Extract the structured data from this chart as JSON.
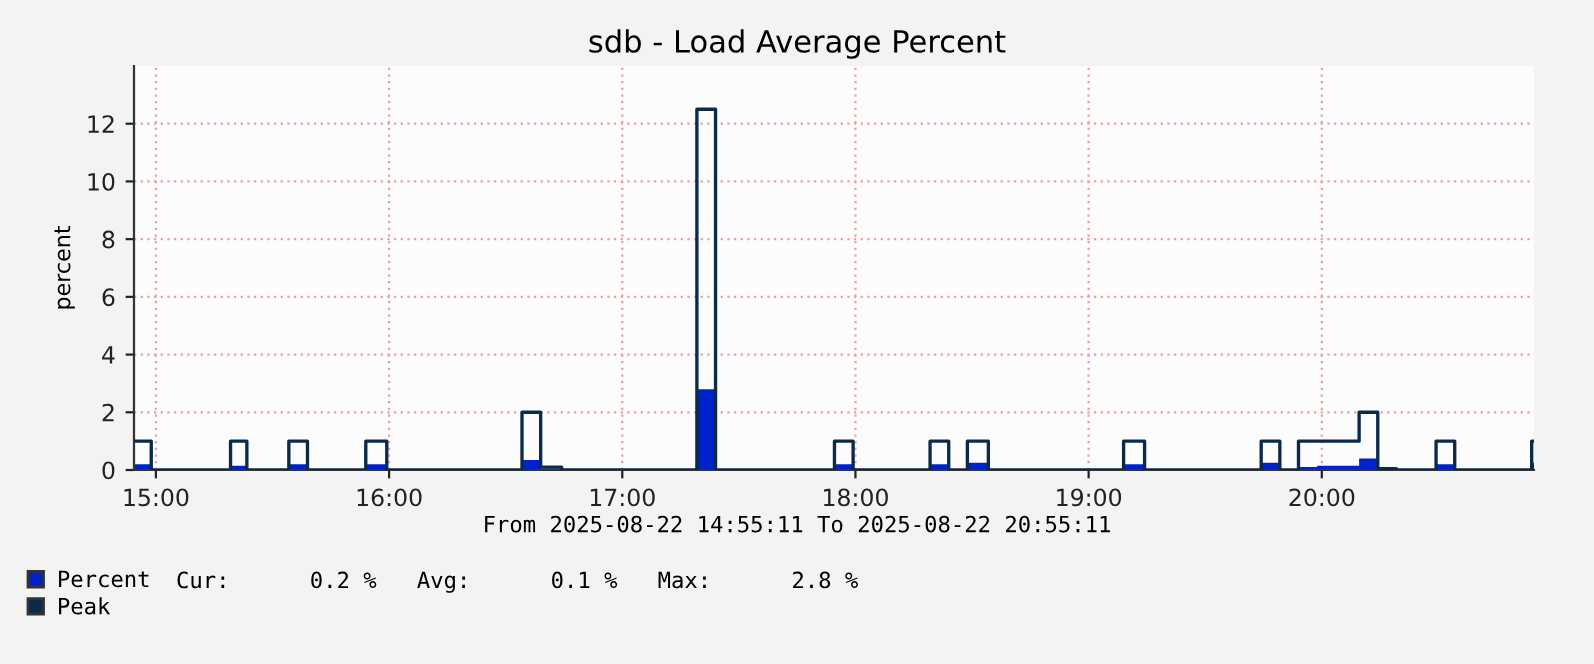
{
  "chart_data": {
    "type": "step",
    "title": "sdb - Load Average Percent",
    "ylabel": "percent",
    "annotations": [
      "From 2025-08-22 14:55:11 To 2025-08-22 20:55:11",
      "Cur:      0.2 %   Avg:      0.1 %   Max:      2.8 %"
    ],
    "series": [
      {
        "name": "Percent",
        "type": "area",
        "color": "#0022cc",
        "x": [
          14.906,
          14.98,
          15.32,
          15.39,
          15.57,
          15.65,
          15.9,
          15.99,
          16.57,
          16.65,
          16.74,
          17.32,
          17.4,
          17.91,
          17.99,
          18.32,
          18.4,
          18.48,
          18.57,
          19.15,
          19.24,
          19.74,
          19.82,
          19.9,
          19.98,
          20.16,
          20.24,
          20.32,
          20.49,
          20.57,
          20.9,
          20.91
        ],
        "values": [
          0.2,
          0,
          0.15,
          0,
          0.2,
          0,
          0.2,
          0,
          0.35,
          0.05,
          0,
          2.8,
          0,
          0.2,
          0,
          0.2,
          0,
          0.25,
          0,
          0.2,
          0,
          0.25,
          0,
          0.1,
          0.15,
          0.4,
          0.05,
          0,
          0.2,
          0,
          0.25,
          0.25
        ]
      },
      {
        "name": "Peak",
        "color": "#0a2a4a",
        "x": [
          14.906,
          14.98,
          15.32,
          15.39,
          15.57,
          15.65,
          15.9,
          15.99,
          16.57,
          16.65,
          16.74,
          17.32,
          17.4,
          17.91,
          17.99,
          18.32,
          18.4,
          18.48,
          18.57,
          19.15,
          19.24,
          19.74,
          19.82,
          19.9,
          20.16,
          20.24,
          20.32,
          20.49,
          20.57,
          20.9,
          20.91
        ],
        "values": [
          1,
          0,
          1,
          0,
          1,
          0,
          1,
          0,
          2,
          0.1,
          0,
          12.5,
          0,
          1,
          0,
          1,
          0,
          1,
          0,
          1,
          0,
          1,
          0,
          1,
          2,
          0.05,
          0,
          1,
          0,
          1,
          1
        ]
      }
    ],
    "xlim": [
      14.906,
      20.91
    ],
    "xticks": [
      {
        "value": 15,
        "label": "15:00"
      },
      {
        "value": 16,
        "label": "16:00"
      },
      {
        "value": 17,
        "label": "17:00"
      },
      {
        "value": 18,
        "label": "18:00"
      },
      {
        "value": 19,
        "label": "19:00"
      },
      {
        "value": 20,
        "label": "20:00"
      }
    ],
    "ylim": [
      0,
      14
    ],
    "yticks": [
      0,
      2,
      4,
      6,
      8,
      10,
      12
    ],
    "grid": true,
    "legend": "bottom left"
  }
}
